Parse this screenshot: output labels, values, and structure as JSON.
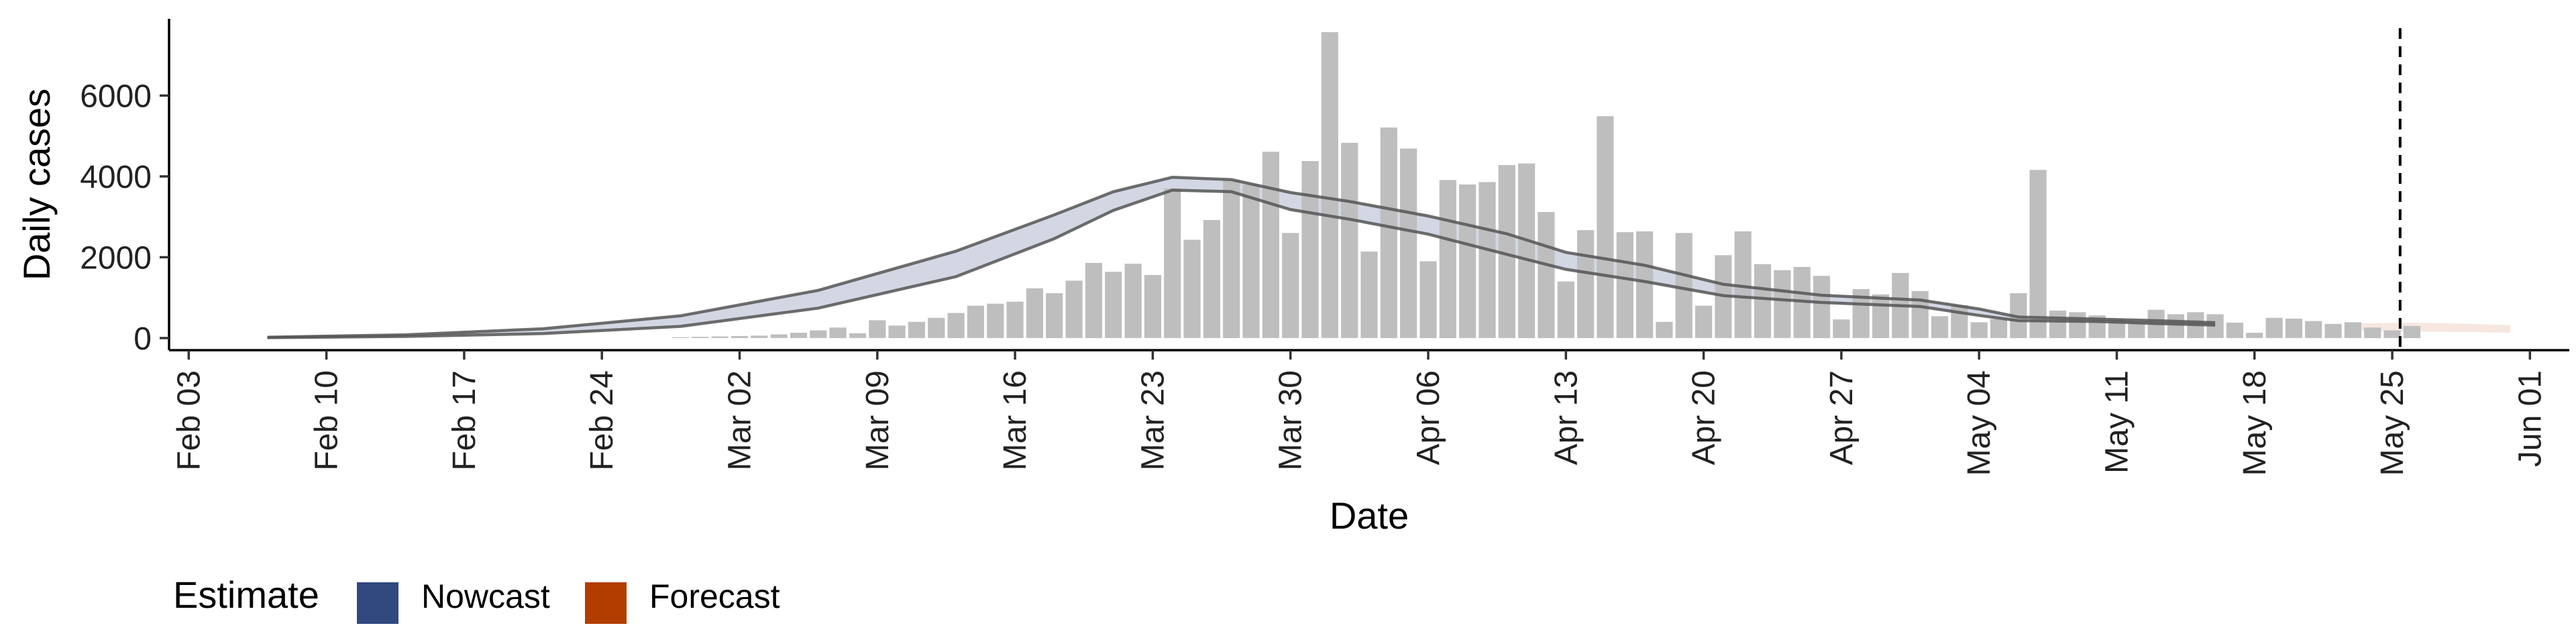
{
  "chart_data": {
    "type": "bar",
    "xlabel": "Date",
    "ylabel": "Daily cases",
    "x_range": [
      "2020-02-02",
      "2020-06-03"
    ],
    "ylim": [
      -300,
      7900
    ],
    "x_ticks": [
      {
        "date": "2020-02-03",
        "label": "Feb 03"
      },
      {
        "date": "2020-02-10",
        "label": "Feb 10"
      },
      {
        "date": "2020-02-17",
        "label": "Feb 17"
      },
      {
        "date": "2020-02-24",
        "label": "Feb 24"
      },
      {
        "date": "2020-03-02",
        "label": "Mar 02"
      },
      {
        "date": "2020-03-09",
        "label": "Mar 09"
      },
      {
        "date": "2020-03-16",
        "label": "Mar 16"
      },
      {
        "date": "2020-03-23",
        "label": "Mar 23"
      },
      {
        "date": "2020-03-30",
        "label": "Mar 30"
      },
      {
        "date": "2020-04-06",
        "label": "Apr 06"
      },
      {
        "date": "2020-04-13",
        "label": "Apr 13"
      },
      {
        "date": "2020-04-20",
        "label": "Apr 20"
      },
      {
        "date": "2020-04-27",
        "label": "Apr 27"
      },
      {
        "date": "2020-05-04",
        "label": "May 04"
      },
      {
        "date": "2020-05-11",
        "label": "May 11"
      },
      {
        "date": "2020-05-18",
        "label": "May 18"
      },
      {
        "date": "2020-05-25",
        "label": "May 25"
      },
      {
        "date": "2020-06-01",
        "label": "Jun 01"
      }
    ],
    "y_ticks": [
      0,
      2000,
      4000,
      6000
    ],
    "bars_start_date": "2020-02-28",
    "bar_color": "#bebebe",
    "daily_cases": [
      20,
      30,
      40,
      50,
      60,
      90,
      130,
      190,
      260,
      120,
      440,
      310,
      400,
      500,
      620,
      800,
      850,
      900,
      1230,
      1110,
      1420,
      1860,
      1640,
      1840,
      1560,
      3700,
      2430,
      2920,
      3900,
      3800,
      4610,
      2600,
      4380,
      7570,
      4830,
      2140,
      5210,
      4690,
      1900,
      3910,
      3800,
      3860,
      4280,
      4320,
      3120,
      1400,
      2670,
      5490,
      2620,
      2640,
      400,
      2600,
      800,
      2050,
      2640,
      1830,
      1680,
      1760,
      1540,
      460,
      1210,
      1080,
      1610,
      1160,
      540,
      810,
      390,
      470,
      1110,
      4160,
      680,
      640,
      560,
      460,
      400,
      700,
      590,
      640,
      590,
      380,
      130,
      500,
      480,
      420,
      350,
      390,
      260,
      190,
      300
    ],
    "estimate_colors": {
      "nowcast": "#31497f",
      "forecast": "#b33d00"
    },
    "nowcast_band": {
      "dates": [
        "2020-02-07",
        "2020-02-14",
        "2020-02-21",
        "2020-02-28",
        "2020-03-06",
        "2020-03-13",
        "2020-03-18",
        "2020-03-21",
        "2020-03-24",
        "2020-03-27",
        "2020-03-30",
        "2020-04-02",
        "2020-04-06",
        "2020-04-10",
        "2020-04-13",
        "2020-04-17",
        "2020-04-21",
        "2020-04-26",
        "2020-05-01",
        "2020-05-04",
        "2020-05-06",
        "2020-05-10",
        "2020-05-13",
        "2020-05-16"
      ],
      "upper": [
        20,
        80,
        230,
        550,
        1180,
        2150,
        3050,
        3620,
        3980,
        3920,
        3600,
        3380,
        3020,
        2580,
        2120,
        1800,
        1330,
        1060,
        940,
        720,
        520,
        470,
        430,
        380
      ],
      "lower": [
        10,
        40,
        110,
        290,
        740,
        1520,
        2460,
        3160,
        3660,
        3620,
        3180,
        2940,
        2570,
        2070,
        1700,
        1400,
        1050,
        880,
        780,
        560,
        430,
        410,
        360,
        320
      ]
    },
    "forecast_band": {
      "dates": [
        "2020-05-23",
        "2020-05-26",
        "2020-05-29",
        "2020-05-31"
      ],
      "upper": [
        360,
        380,
        350,
        320
      ],
      "lower": [
        180,
        160,
        150,
        130
      ]
    },
    "vline_date": "2020-05-25",
    "legend": {
      "position": "bottom-left",
      "title": "Estimate",
      "items": [
        {
          "label": "Nowcast",
          "color": "#31497f"
        },
        {
          "label": "Forecast",
          "color": "#b33d00"
        }
      ]
    },
    "grid": false
  }
}
